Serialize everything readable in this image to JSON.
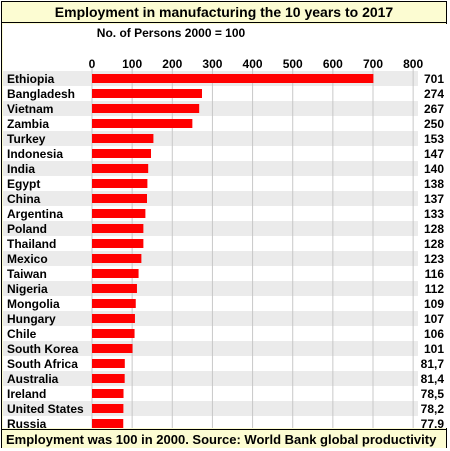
{
  "chart_data": {
    "type": "bar",
    "orientation": "horizontal",
    "title": "Employment in manufacturing the 10 years to 2017",
    "subtitle": "No. of Persons 2000 = 100",
    "source": "Employment was 100 in 2000. Source: World Bank global productivity",
    "xlim": [
      0,
      800
    ],
    "xticks": [
      0,
      100,
      200,
      300,
      400,
      500,
      600,
      700,
      800
    ],
    "grid": true,
    "bar_color": "#ff0000",
    "categories": [
      "Ethiopia",
      "Bangladesh",
      "Vietnam",
      "Zambia",
      "Turkey",
      "Indonesia",
      "India",
      "Egypt",
      "China",
      "Argentina",
      "Poland",
      "Thailand",
      "Mexico",
      "Taiwan",
      "Nigeria",
      "Mongolia",
      "Hungary",
      "Chile",
      "South Korea",
      "South Africa",
      "Australia",
      "Ireland",
      "United States",
      "Russia"
    ],
    "values": [
      701,
      274,
      267,
      250,
      153,
      147,
      140,
      138,
      137,
      133,
      128,
      128,
      123,
      116,
      112,
      109,
      107,
      106,
      101,
      81.7,
      81.4,
      78.5,
      78.2,
      77.9
    ],
    "value_labels": [
      "701",
      "274",
      "267",
      "250",
      "153",
      "147",
      "140",
      "138",
      "137",
      "133",
      "128",
      "128",
      "123",
      "116",
      "112",
      "109",
      "107",
      "106",
      "101",
      "81,7",
      "81,4",
      "78,5",
      "78,2",
      "77,9"
    ]
  }
}
